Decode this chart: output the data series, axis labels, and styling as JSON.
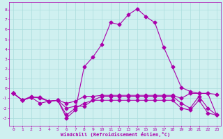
{
  "xlabel": "Windchill (Refroidissement éolien,°C)",
  "background_color": "#cff0f0",
  "grid_color": "#aadddd",
  "line_color": "#aa00aa",
  "x_ticks": [
    0,
    1,
    2,
    3,
    4,
    5,
    6,
    7,
    8,
    9,
    10,
    11,
    12,
    13,
    14,
    15,
    16,
    17,
    18,
    19,
    20,
    21,
    22,
    23
  ],
  "y_ticks": [
    -3,
    -2,
    -1,
    0,
    1,
    2,
    3,
    4,
    5,
    6,
    7,
    8
  ],
  "ylim": [
    -3.8,
    8.8
  ],
  "xlim": [
    -0.5,
    23.5
  ],
  "series_main_x": [
    0,
    1,
    2,
    3,
    4,
    5,
    6,
    7,
    8,
    9,
    10,
    11,
    12,
    13,
    14,
    15,
    16,
    17,
    18,
    19,
    20,
    21,
    22,
    23
  ],
  "series_main_y": [
    -0.5,
    -1.2,
    -0.8,
    -1.0,
    -1.3,
    -1.2,
    -3.0,
    -2.2,
    2.2,
    3.2,
    4.5,
    6.7,
    6.5,
    7.5,
    8.1,
    7.3,
    6.7,
    4.2,
    2.2,
    0.1,
    -0.3,
    -0.5,
    -0.5,
    -2.7
  ],
  "series_flat1_x": [
    0,
    1,
    2,
    3,
    4,
    5,
    6,
    7,
    8,
    9,
    10,
    11,
    12,
    13,
    14,
    15,
    16,
    17,
    18,
    19,
    20,
    21,
    22,
    23
  ],
  "series_flat1_y": [
    -0.5,
    -1.2,
    -0.9,
    -0.9,
    -1.3,
    -1.2,
    -1.5,
    -1.3,
    -0.8,
    -0.8,
    -0.7,
    -0.7,
    -0.7,
    -0.7,
    -0.7,
    -0.7,
    -0.7,
    -0.7,
    -0.7,
    -1.0,
    -0.5,
    -0.5,
    -0.5,
    -0.6
  ],
  "series_flat2_x": [
    0,
    1,
    2,
    3,
    4,
    5,
    6,
    7,
    8,
    9,
    10,
    11,
    12,
    13,
    14,
    15,
    16,
    17,
    18,
    19,
    20,
    21,
    22,
    23
  ],
  "series_flat2_y": [
    -0.5,
    -1.2,
    -0.9,
    -1.5,
    -1.3,
    -1.2,
    -2.7,
    -2.0,
    -1.5,
    -1.2,
    -0.8,
    -0.8,
    -0.8,
    -0.8,
    -0.8,
    -0.8,
    -0.8,
    -0.8,
    -0.8,
    -1.5,
    -2.0,
    -0.8,
    -2.0,
    -2.7
  ],
  "series_flat3_x": [
    0,
    1,
    2,
    3,
    4,
    5,
    6,
    7,
    8,
    9,
    10,
    11,
    12,
    13,
    14,
    15,
    16,
    17,
    18,
    19,
    20,
    21,
    22,
    23
  ],
  "series_flat3_y": [
    -0.5,
    -1.2,
    -0.9,
    -0.9,
    -1.3,
    -1.2,
    -2.0,
    -1.8,
    -1.8,
    -1.2,
    -1.2,
    -1.2,
    -1.2,
    -1.2,
    -1.2,
    -1.2,
    -1.2,
    -1.2,
    -1.2,
    -2.0,
    -2.2,
    -1.2,
    -2.5,
    -2.7
  ],
  "markersize": 2.5,
  "linewidth": 0.8
}
